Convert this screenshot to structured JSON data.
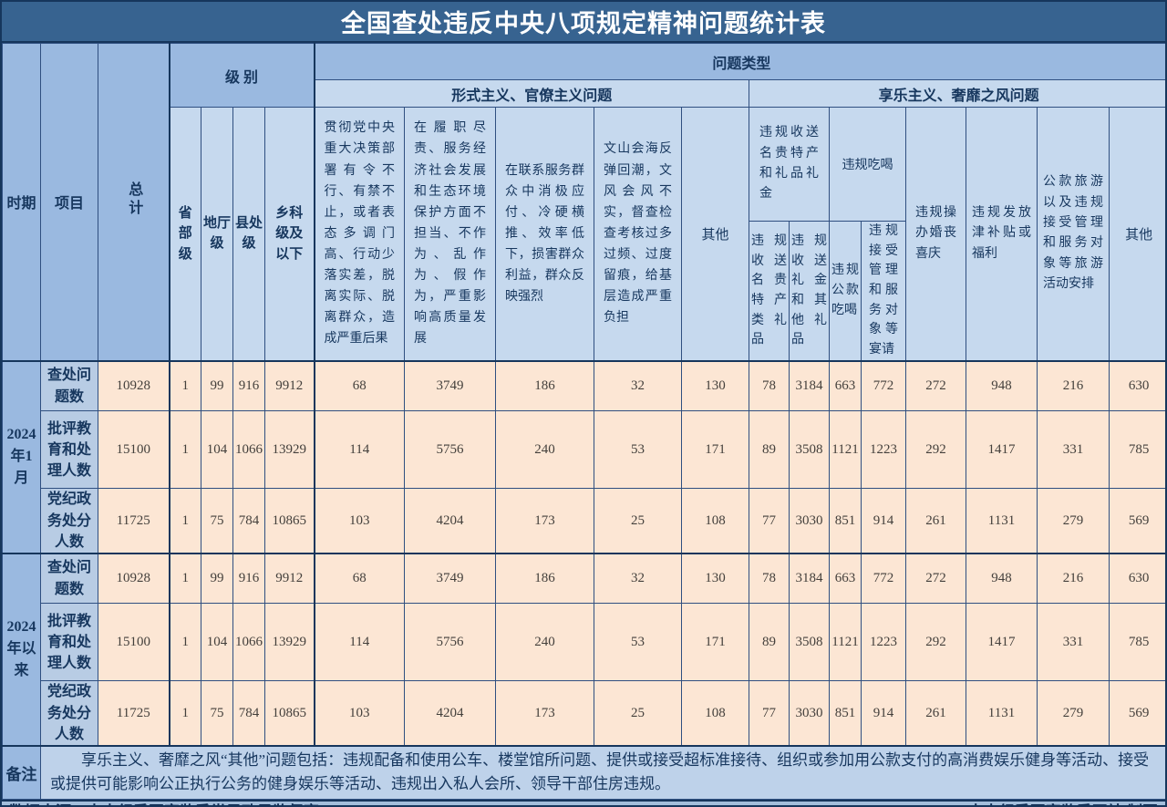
{
  "title": "全国查处违反中央八项规定精神问题统计表",
  "header": {
    "period_label": "时期",
    "item_label": "项目",
    "total_label": "总计",
    "level_label": "级 别",
    "problem_type_label": "问题类型",
    "level_columns": [
      "省部级",
      "地厅级",
      "县处级",
      "乡科级及以下"
    ],
    "formalism_label": "形式主义、官僚主义问题",
    "formalism_columns": [
      "贯彻党中央重大决策部署有令不行、有禁不止，或者表态多调门高、行动少落实差，脱离实际、脱离群众，造成严重后果",
      "在履职尽责、服务经济社会发展和生态环境保护方面不担当、不作为、乱作为、假作为，严重影响高质量发展",
      "在联系服务群众中消极应付、冷硬横推、效率低下，损害群众利益，群众反映强烈",
      "文山会海反弹回潮，文风会风不实，督查检查考核过多过频、过度留痕，给基层造成严重负担",
      "其他"
    ],
    "hedonism_label": "享乐主义、奢靡之风问题",
    "gift_group_label": "违规收送名贵特产和礼品礼金",
    "gift_columns": [
      "违规收送名贵特产类礼品",
      "违规收送礼金和其他礼品"
    ],
    "dining_group_label": "违规吃喝",
    "dining_columns": [
      "违规公款吃喝",
      "违规接受管理和服务对象等宴请"
    ],
    "hedonism_columns": [
      "违规操办婚丧喜庆",
      "违规发放津补贴或福利",
      "公款旅游以及违规接受管理和服务对象等旅游活动安排",
      "其他"
    ]
  },
  "chart_data": {
    "type": "table",
    "title": "全国查处违反中央八项规定精神问题统计表",
    "columns": [
      "时期",
      "项目",
      "总计",
      "省部级",
      "地厅级",
      "县处级",
      "乡科级及以下",
      "形式主义-贯彻党中央重大决策部署有令不行有禁不止等问题",
      "形式主义-履职尽责服务经济社会发展不担当不作为等问题",
      "形式主义-联系服务群众中消极应付冷硬横推等问题",
      "形式主义-文山会海反弹回潮督查检查考核过多过频等问题",
      "形式主义-其他",
      "违规收送名贵特产类礼品",
      "违规收送礼金和其他礼品",
      "违规公款吃喝",
      "违规接受管理和服务对象等宴请",
      "违规操办婚丧喜庆",
      "违规发放津补贴或福利",
      "公款旅游以及违规接受管理和服务对象等旅游活动安排",
      "享乐主义-其他"
    ],
    "row_groups": [
      {
        "period": "2024年1月",
        "rows": [
          {
            "item": "查处问题数",
            "values": [
              10928,
              1,
              99,
              916,
              9912,
              68,
              3749,
              186,
              32,
              130,
              78,
              3184,
              663,
              772,
              272,
              948,
              216,
              630
            ]
          },
          {
            "item": "批评教育和处理人数",
            "values": [
              15100,
              1,
              104,
              1066,
              13929,
              114,
              5756,
              240,
              53,
              171,
              89,
              3508,
              1121,
              1223,
              292,
              1417,
              331,
              785
            ]
          },
          {
            "item": "党纪政务处分人数",
            "values": [
              11725,
              1,
              75,
              784,
              10865,
              103,
              4204,
              173,
              25,
              108,
              77,
              3030,
              851,
              914,
              261,
              1131,
              279,
              569
            ]
          }
        ]
      },
      {
        "period": "2024年以来",
        "rows": [
          {
            "item": "查处问题数",
            "values": [
              10928,
              1,
              99,
              916,
              9912,
              68,
              3749,
              186,
              32,
              130,
              78,
              3184,
              663,
              772,
              272,
              948,
              216,
              630
            ]
          },
          {
            "item": "批评教育和处理人数",
            "values": [
              15100,
              1,
              104,
              1066,
              13929,
              114,
              5756,
              240,
              53,
              171,
              89,
              3508,
              1121,
              1223,
              292,
              1417,
              331,
              785
            ]
          },
          {
            "item": "党纪政务处分人数",
            "values": [
              11725,
              1,
              75,
              784,
              10865,
              103,
              4204,
              173,
              25,
              108,
              77,
              3030,
              851,
              914,
              261,
              1131,
              279,
              569
            ]
          }
        ]
      }
    ]
  },
  "remark": {
    "label": "备注",
    "text": "享乐主义、奢靡之风“其他”问题包括：违规配备和使用公车、楼堂馆所问题、提供或接受超标准接待、组织或参加用公款支付的高消费娱乐健身等活动、接受或提供可能影响公正执行公务的健身娱乐等活动、违规出入私人会所、领导干部住房违规。"
  },
  "footer": {
    "source": "数据来源：中央纪委国家监委党风政风监督室",
    "credit": "中央纪委国家监委网站  制图"
  },
  "colors": {
    "title_bg": "#376390",
    "header_medium_blue": "#9ab9e0",
    "header_light_blue": "#c6d9ee",
    "item_cell_blue": "#b8cce4",
    "data_cell_peach": "#fce6d4",
    "footer_bar_blue": "#a3bedb",
    "grid_line": "#2f4f80",
    "frame": "#16365c"
  }
}
